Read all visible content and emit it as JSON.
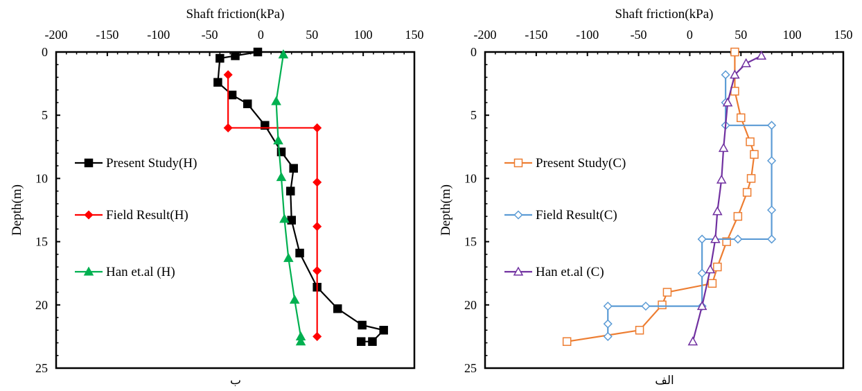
{
  "chart_data": [
    {
      "type": "line",
      "caption": "ب",
      "xlabel": "Shaft friction(kPa)",
      "ylabel": "Depth(m)",
      "xlim": [
        -200,
        150
      ],
      "ylim": [
        0,
        25
      ],
      "x_ticks": [
        -200,
        -150,
        -100,
        -50,
        0,
        50,
        100,
        150
      ],
      "y_ticks": [
        0,
        5,
        10,
        15,
        20,
        25
      ],
      "x_axis_position": "top",
      "y_axis_inverted": true,
      "grid": false,
      "legend_position": "left",
      "series": [
        {
          "name": "Present Study(H)",
          "color": "#000000",
          "marker": "filled-square",
          "points": [
            [
              -3,
              0
            ],
            [
              -25,
              0.3
            ],
            [
              -40,
              0.5
            ],
            [
              -42,
              2.4
            ],
            [
              -28,
              3.4
            ],
            [
              -13,
              4.1
            ],
            [
              4,
              5.8
            ],
            [
              20,
              7.9
            ],
            [
              32,
              9.2
            ],
            [
              29,
              11.0
            ],
            [
              30,
              13.3
            ],
            [
              38,
              15.9
            ],
            [
              55,
              18.6
            ],
            [
              75,
              20.3
            ],
            [
              99,
              21.6
            ],
            [
              120,
              22.0
            ],
            [
              109,
              22.9
            ],
            [
              98,
              22.9
            ]
          ]
        },
        {
          "name": "Field Result(H)",
          "color": "#ff0000",
          "marker": "filled-diamond",
          "points": [
            [
              -32,
              1.8
            ],
            [
              -32,
              6.0
            ],
            [
              55,
              6.0
            ],
            [
              55,
              10.3
            ],
            [
              55,
              13.8
            ],
            [
              55,
              17.3
            ],
            [
              55,
              22.5
            ]
          ]
        },
        {
          "name": "Han et.al (H)",
          "color": "#00b050",
          "marker": "filled-triangle",
          "points": [
            [
              22,
              0.2
            ],
            [
              15,
              3.9
            ],
            [
              17,
              7.0
            ],
            [
              20,
              9.9
            ],
            [
              23,
              13.2
            ],
            [
              27,
              16.3
            ],
            [
              33,
              19.6
            ],
            [
              39,
              22.5
            ],
            [
              39,
              22.9
            ]
          ]
        }
      ]
    },
    {
      "type": "line",
      "caption": "الف",
      "xlabel": "Shaft friction(kPa)",
      "ylabel": "Depth(m)",
      "xlim": [
        -200,
        150
      ],
      "ylim": [
        0,
        25
      ],
      "x_ticks": [
        -200,
        -150,
        -100,
        -50,
        0,
        50,
        100,
        150
      ],
      "y_ticks": [
        0,
        5,
        10,
        15,
        20,
        25
      ],
      "x_axis_position": "top",
      "y_axis_inverted": true,
      "grid": false,
      "legend_position": "left",
      "series": [
        {
          "name": "Present Study(C)",
          "color": "#ed7d31",
          "marker": "open-square",
          "points": [
            [
              44,
              0
            ],
            [
              44,
              3.1
            ],
            [
              50,
              5.2
            ],
            [
              59,
              7.1
            ],
            [
              63,
              8.1
            ],
            [
              60,
              10.0
            ],
            [
              56,
              11.1
            ],
            [
              47,
              13.0
            ],
            [
              36,
              15.0
            ],
            [
              27,
              17.0
            ],
            [
              22,
              18.3
            ],
            [
              -22,
              19.0
            ],
            [
              -27,
              20.0
            ],
            [
              -49,
              22.0
            ],
            [
              -120,
              22.9
            ]
          ]
        },
        {
          "name": "Field Result(C)",
          "color": "#5b9bd5",
          "marker": "open-diamond",
          "points": [
            [
              35,
              1.8
            ],
            [
              35,
              4.0
            ],
            [
              35,
              5.8
            ],
            [
              80,
              5.8
            ],
            [
              80,
              8.6
            ],
            [
              80,
              12.5
            ],
            [
              80,
              14.8
            ],
            [
              47,
              14.8
            ],
            [
              12,
              14.8
            ],
            [
              12,
              17.5
            ],
            [
              12,
              20.1
            ],
            [
              -43,
              20.1
            ],
            [
              -80,
              20.1
            ],
            [
              -80,
              21.5
            ],
            [
              -80,
              22.5
            ]
          ]
        },
        {
          "name": "Han et.al (C)",
          "color": "#7030a0",
          "marker": "open-triangle",
          "points": [
            [
              70,
              0.3
            ],
            [
              55,
              0.9
            ],
            [
              44,
              1.8
            ],
            [
              37,
              4.0
            ],
            [
              33,
              7.6
            ],
            [
              31,
              10.1
            ],
            [
              27,
              12.6
            ],
            [
              25,
              14.8
            ],
            [
              20,
              17.2
            ],
            [
              12,
              20.1
            ],
            [
              3,
              22.9
            ]
          ]
        }
      ]
    }
  ]
}
